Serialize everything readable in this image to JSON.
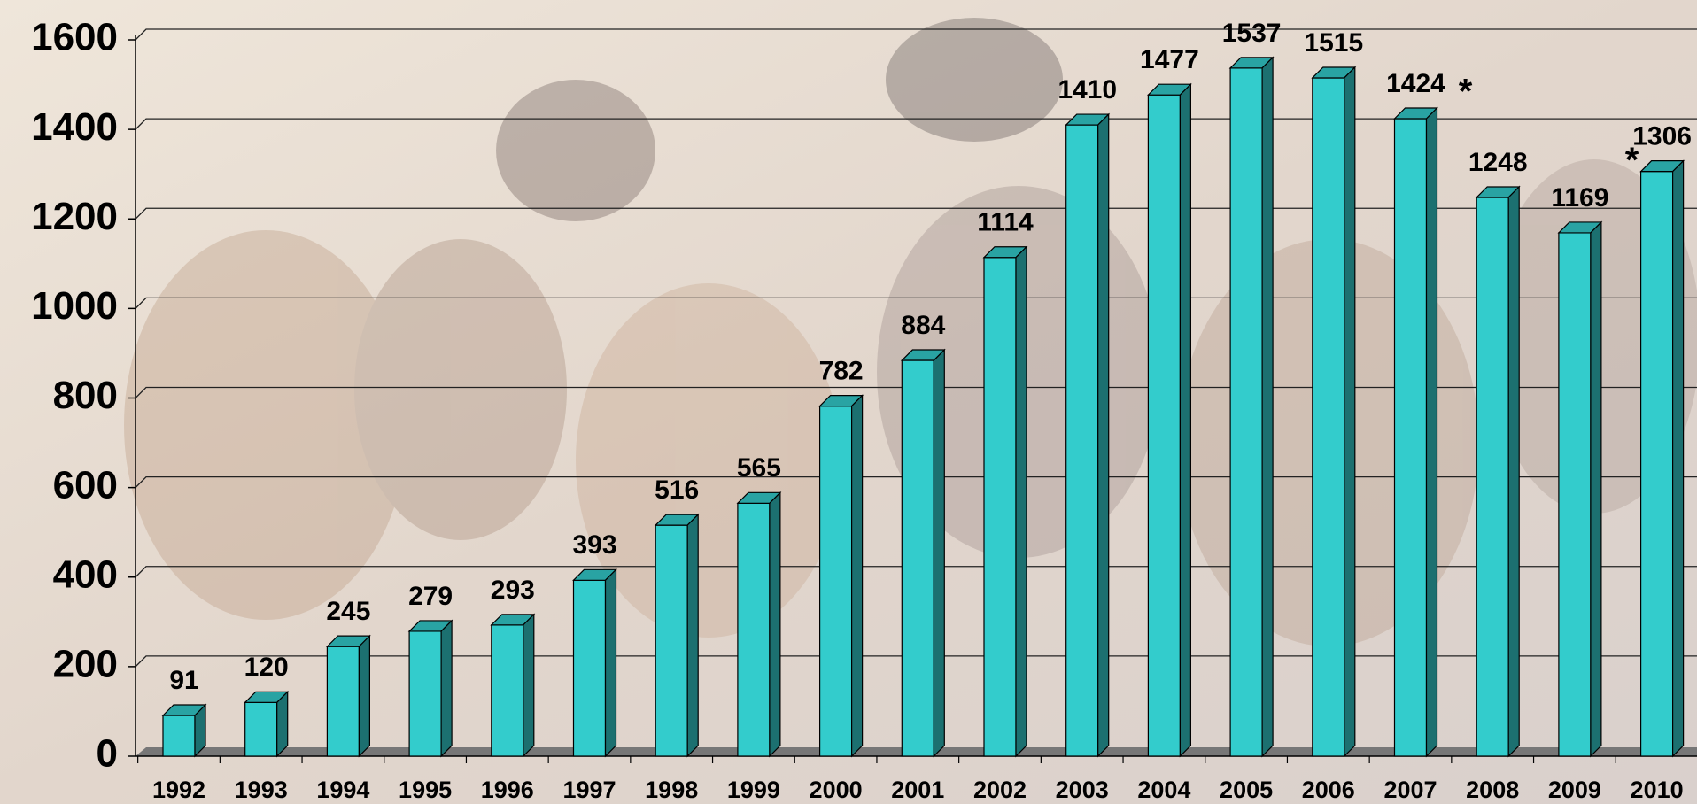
{
  "chart_data": {
    "type": "bar3d",
    "categories": [
      "1992",
      "1993",
      "1994",
      "1995",
      "1996",
      "1997",
      "1998",
      "1999",
      "2000",
      "2001",
      "2002",
      "2003",
      "2004",
      "2005",
      "2006",
      "2007",
      "2008",
      "2009",
      "2010"
    ],
    "values": [
      91,
      120,
      245,
      279,
      293,
      393,
      516,
      565,
      782,
      884,
      1114,
      1410,
      1477,
      1537,
      1515,
      1424,
      1248,
      1169,
      1306
    ],
    "color": "#33cccc",
    "ylim": [
      0,
      1600
    ],
    "yticks": [
      0,
      200,
      400,
      600,
      800,
      1000,
      1200,
      1400,
      1600
    ],
    "grid": true,
    "annotations": [
      "*",
      "*"
    ]
  }
}
